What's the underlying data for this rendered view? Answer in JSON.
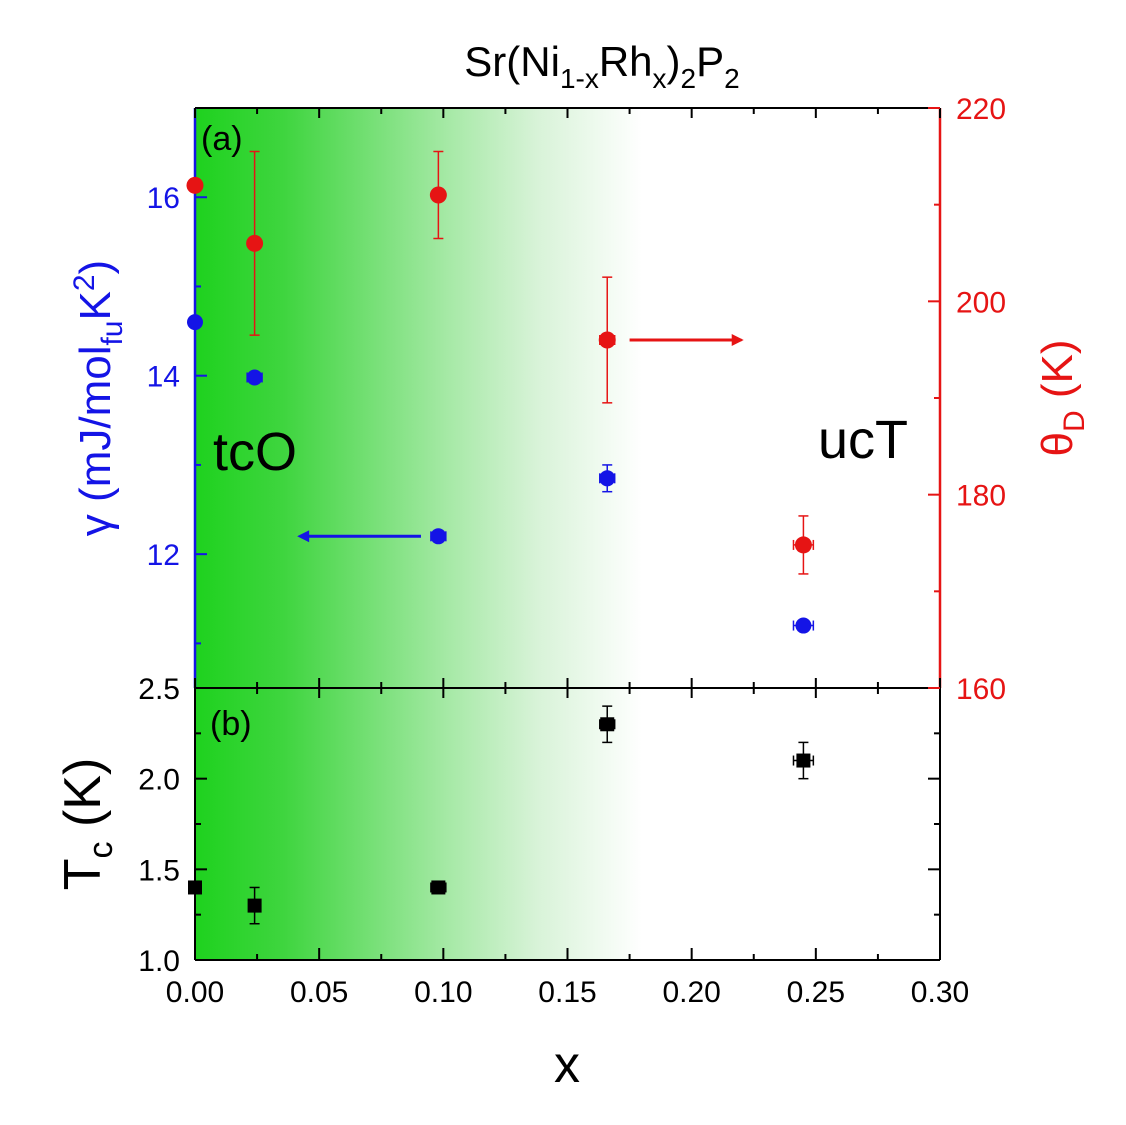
{
  "colors": {
    "blue": "#1414e6",
    "red": "#e61414",
    "black": "#000000",
    "green": "#1ed21e"
  },
  "chart_data": [
    {
      "panel": "(a)",
      "type": "scatter",
      "title_parts": {
        "base": "Sr(Ni",
        "sub1": "1-x",
        "mid": "Rh",
        "sub2": "x",
        "close": ")",
        "sub3": "2",
        "p": "P",
        "sub4": "2"
      },
      "xlim": [
        0,
        0.3
      ],
      "left_axis": {
        "label_parts": {
          "gamma": "γ",
          "pre": " (mJ/mol",
          "sub": "fu",
          "k": "K",
          "sup": "2",
          "post": ")"
        },
        "ylim": [
          10.5,
          17
        ],
        "ticks": [
          12,
          14,
          16
        ],
        "minor_ticks": [
          11,
          13,
          15
        ],
        "color": "#1414e6"
      },
      "right_axis": {
        "label_parts": {
          "theta": "θ",
          "sub": "D",
          "post": " (K)"
        },
        "ylim": [
          160,
          220
        ],
        "ticks": [
          160,
          180,
          200,
          220
        ],
        "minor_ticks": [
          170,
          190,
          210
        ],
        "color": "#e61414"
      },
      "series": [
        {
          "name": "gamma",
          "axis": "left",
          "x": [
            0.0,
            0.024,
            0.098,
            0.166,
            0.245
          ],
          "y": [
            14.6,
            13.98,
            12.2,
            12.85,
            11.2
          ],
          "xerr": [
            0.0,
            0.003,
            0.003,
            0.003,
            0.004
          ],
          "yerr": [
            0.0,
            0.0,
            0.0,
            0.15,
            0.0
          ]
        },
        {
          "name": "theta_D",
          "axis": "right",
          "x": [
            0.0,
            0.024,
            0.098,
            0.166,
            0.245
          ],
          "y": [
            212,
            206,
            211,
            196,
            174.8
          ],
          "xerr": [
            0.0,
            0.0,
            0.002,
            0.003,
            0.004
          ],
          "yerr": [
            0.0,
            9.5,
            4.5,
            6.5,
            3.0
          ]
        }
      ],
      "annotations": [
        {
          "text": "tcO",
          "x": 0.025,
          "y": 13.0
        },
        {
          "text": "ucT",
          "x": 0.27,
          "y": 13.5
        }
      ],
      "arrows": [
        {
          "direction": "left",
          "axis": "left",
          "y": 12.2,
          "x_from": 0.091,
          "x_to": 0.045
        },
        {
          "direction": "right",
          "axis": "right",
          "y": 196,
          "x_from": 0.175,
          "x_to": 0.22
        }
      ]
    },
    {
      "panel": "(b)",
      "type": "scatter",
      "xlabel": "x",
      "ylabel_parts": {
        "t": "T",
        "sub": "c",
        "post": " (K)"
      },
      "xlim": [
        0,
        0.3
      ],
      "ylim": [
        1.0,
        2.5
      ],
      "xticks": [
        "0.00",
        "0.05",
        "0.10",
        "0.15",
        "0.20",
        "0.25",
        "0.30"
      ],
      "yticks": [
        "1.0",
        "1.5",
        "2.0",
        "2.5"
      ],
      "series": [
        {
          "name": "Tc",
          "x": [
            0.0,
            0.024,
            0.098,
            0.166,
            0.245
          ],
          "y": [
            1.4,
            1.3,
            1.4,
            2.3,
            2.1
          ],
          "xerr": [
            0.0,
            0.0,
            0.003,
            0.003,
            0.004
          ],
          "yerr": [
            0.0,
            0.1,
            0.0,
            0.1,
            0.1
          ]
        }
      ]
    }
  ]
}
